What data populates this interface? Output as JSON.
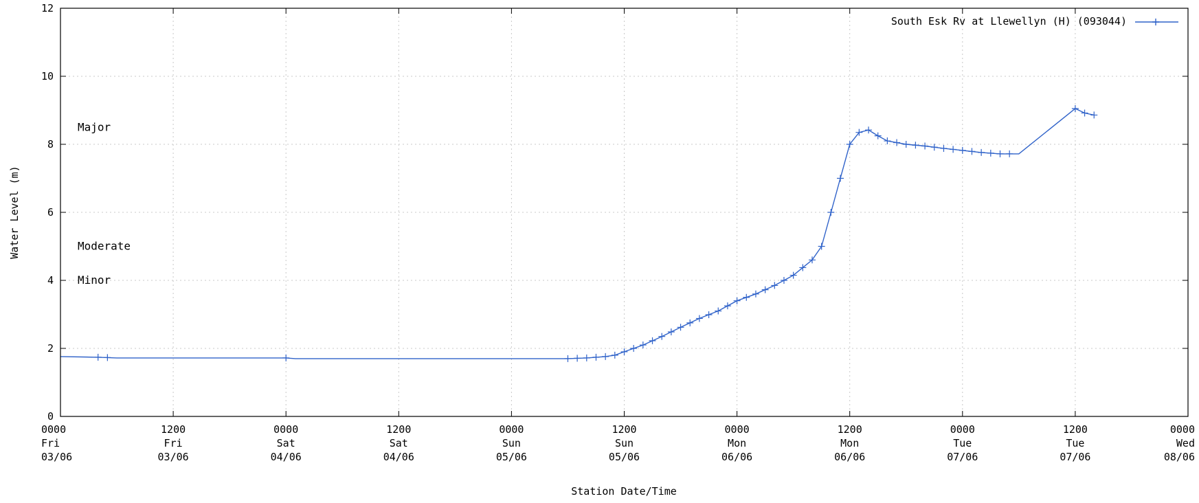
{
  "chart_data": {
    "type": "line",
    "xlabel": "Station Date/Time",
    "ylabel": "Water Level (m)",
    "ylim": [
      0,
      12
    ],
    "xlim": [
      "2011-06-03 00:00",
      "2011-06-08 00:00"
    ],
    "grid": true,
    "legend_position": "top-right",
    "y_ticks": [
      "0",
      "2",
      "4",
      "6",
      "8",
      "10",
      "12"
    ],
    "x_ticks": [
      {
        "time": "0000",
        "day": "Fri",
        "date": "03/06"
      },
      {
        "time": "1200",
        "day": "Fri",
        "date": "03/06"
      },
      {
        "time": "0000",
        "day": "Sat",
        "date": "04/06"
      },
      {
        "time": "1200",
        "day": "Sat",
        "date": "04/06"
      },
      {
        "time": "0000",
        "day": "Sun",
        "date": "05/06"
      },
      {
        "time": "1200",
        "day": "Sun",
        "date": "05/06"
      },
      {
        "time": "0000",
        "day": "Mon",
        "date": "06/06"
      },
      {
        "time": "1200",
        "day": "Mon",
        "date": "06/06"
      },
      {
        "time": "0000",
        "day": "Tue",
        "date": "07/06"
      },
      {
        "time": "1200",
        "day": "Tue",
        "date": "07/06"
      },
      {
        "time": "0000",
        "day": "Wed",
        "date": "08/06"
      }
    ],
    "thresholds": [
      {
        "label": "Major",
        "value": 8.5
      },
      {
        "label": "Moderate",
        "value": 5.0
      },
      {
        "label": "Minor",
        "value": 4.0
      }
    ],
    "series": [
      {
        "name": "South Esk Rv at Llewellyn (H) (093044)",
        "color": "#2f62c9",
        "marker": "plus",
        "points": [
          [
            "2011-06-03 00:00",
            1.76
          ],
          [
            "2011-06-03 04:00",
            1.74
          ],
          [
            "2011-06-03 06:00",
            1.72
          ],
          [
            "2011-06-03 12:00",
            1.72
          ],
          [
            "2011-06-04 00:00",
            1.72
          ],
          [
            "2011-06-04 01:00",
            1.7
          ],
          [
            "2011-06-04 12:00",
            1.7
          ],
          [
            "2011-06-05 00:00",
            1.7
          ],
          [
            "2011-06-05 06:00",
            1.7
          ],
          [
            "2011-06-05 08:00",
            1.72
          ],
          [
            "2011-06-05 10:00",
            1.76
          ],
          [
            "2011-06-05 11:00",
            1.8
          ],
          [
            "2011-06-05 12:00",
            1.9
          ],
          [
            "2011-06-05 14:00",
            2.1
          ],
          [
            "2011-06-05 16:00",
            2.35
          ],
          [
            "2011-06-05 18:00",
            2.62
          ],
          [
            "2011-06-05 20:00",
            2.88
          ],
          [
            "2011-06-05 22:00",
            3.1
          ],
          [
            "2011-06-06 00:00",
            3.4
          ],
          [
            "2011-06-06 02:00",
            3.6
          ],
          [
            "2011-06-06 04:00",
            3.85
          ],
          [
            "2011-06-06 06:00",
            4.15
          ],
          [
            "2011-06-06 08:00",
            4.6
          ],
          [
            "2011-06-06 09:00",
            5.0
          ],
          [
            "2011-06-06 10:00",
            6.0
          ],
          [
            "2011-06-06 11:00",
            7.0
          ],
          [
            "2011-06-06 12:00",
            8.0
          ],
          [
            "2011-06-06 13:00",
            8.35
          ],
          [
            "2011-06-06 14:00",
            8.42
          ],
          [
            "2011-06-06 15:00",
            8.25
          ],
          [
            "2011-06-06 16:00",
            8.1
          ],
          [
            "2011-06-06 18:00",
            8.0
          ],
          [
            "2011-06-06 20:00",
            7.95
          ],
          [
            "2011-06-06 22:00",
            7.88
          ],
          [
            "2011-06-07 00:00",
            7.82
          ],
          [
            "2011-06-07 02:00",
            7.76
          ],
          [
            "2011-06-07 04:00",
            7.72
          ],
          [
            "2011-06-07 06:00",
            7.72
          ],
          [
            "2011-06-07 12:00",
            9.05
          ],
          [
            "2011-06-07 13:00",
            8.92
          ],
          [
            "2011-06-07 14:00",
            8.86
          ]
        ]
      }
    ]
  }
}
